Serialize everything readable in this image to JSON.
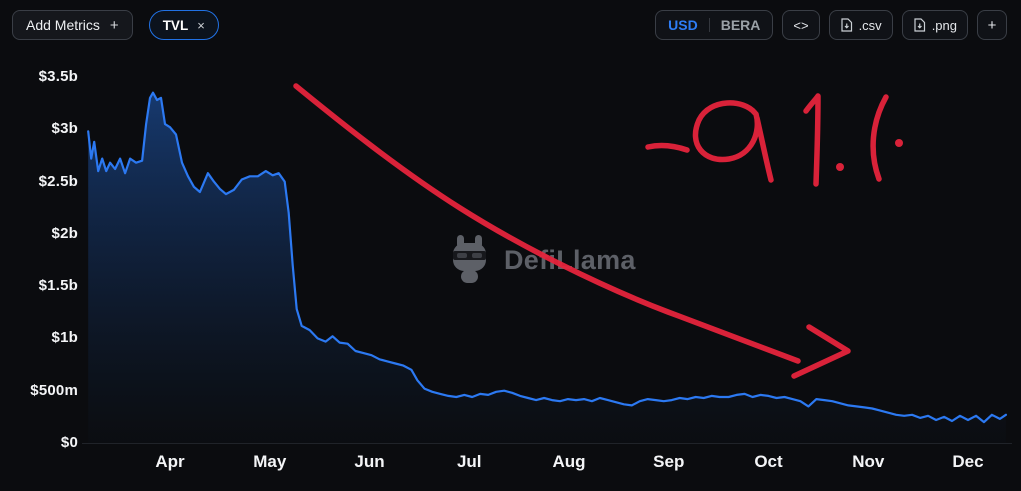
{
  "toolbar": {
    "add_metrics_label": "Add Metrics",
    "add_metrics_plus": "+",
    "metric_chip": {
      "label": "TVL",
      "close": "×"
    },
    "currency": {
      "usd": "USD",
      "bera": "BERA",
      "selected": "USD"
    },
    "embed_label": "<>",
    "csv_label": ".csv",
    "png_label": ".png",
    "add_label": "+"
  },
  "watermark": {
    "label": "DefiLlama"
  },
  "annotation": {
    "text": "-91%",
    "color": "#e5243c"
  },
  "colors": {
    "background": "#0b0c0f",
    "accent_blue": "#2172e5",
    "axis_text": "#f4f5f7",
    "muted_text": "#9aa0a6",
    "annotation_red": "#e5243c"
  },
  "chart_data": {
    "type": "area",
    "title": "TVL",
    "currency": "USD",
    "legend": false,
    "grid": false,
    "x_axis": {
      "ticks": [
        "Apr",
        "May",
        "Jun",
        "Jul",
        "Aug",
        "Sep",
        "Oct",
        "Nov",
        "Dec"
      ],
      "tick_values": [
        4,
        5,
        6,
        7,
        8,
        9,
        10,
        11,
        12
      ],
      "range_months": [
        3.18,
        12.4
      ]
    },
    "y_axis": {
      "ticks": [
        "$3.5b",
        "$3b",
        "$2.5b",
        "$2b",
        "$1.5b",
        "$1b",
        "$500m",
        "$0"
      ],
      "tick_values": [
        3.5,
        3.0,
        2.5,
        2.0,
        1.5,
        1.0,
        0.5,
        0
      ],
      "range": [
        0,
        3.5
      ],
      "unit": "USD billions"
    },
    "series": [
      {
        "name": "TVL",
        "color": "#2c79f2",
        "points": [
          [
            3.18,
            2.98
          ],
          [
            3.21,
            2.72
          ],
          [
            3.24,
            2.88
          ],
          [
            3.28,
            2.6
          ],
          [
            3.32,
            2.72
          ],
          [
            3.36,
            2.6
          ],
          [
            3.4,
            2.68
          ],
          [
            3.45,
            2.62
          ],
          [
            3.5,
            2.72
          ],
          [
            3.55,
            2.58
          ],
          [
            3.6,
            2.72
          ],
          [
            3.66,
            2.68
          ],
          [
            3.72,
            2.7
          ],
          [
            3.76,
            3.05
          ],
          [
            3.8,
            3.3
          ],
          [
            3.83,
            3.35
          ],
          [
            3.87,
            3.28
          ],
          [
            3.91,
            3.3
          ],
          [
            3.95,
            3.05
          ],
          [
            4.0,
            3.02
          ],
          [
            4.06,
            2.95
          ],
          [
            4.12,
            2.68
          ],
          [
            4.18,
            2.55
          ],
          [
            4.24,
            2.45
          ],
          [
            4.3,
            2.4
          ],
          [
            4.38,
            2.58
          ],
          [
            4.44,
            2.5
          ],
          [
            4.5,
            2.43
          ],
          [
            4.56,
            2.38
          ],
          [
            4.64,
            2.42
          ],
          [
            4.72,
            2.52
          ],
          [
            4.8,
            2.55
          ],
          [
            4.88,
            2.55
          ],
          [
            4.96,
            2.6
          ],
          [
            5.03,
            2.56
          ],
          [
            5.09,
            2.58
          ],
          [
            5.15,
            2.5
          ],
          [
            5.19,
            2.2
          ],
          [
            5.23,
            1.7
          ],
          [
            5.27,
            1.28
          ],
          [
            5.32,
            1.12
          ],
          [
            5.4,
            1.08
          ],
          [
            5.48,
            1.0
          ],
          [
            5.56,
            0.97
          ],
          [
            5.63,
            1.02
          ],
          [
            5.7,
            0.96
          ],
          [
            5.78,
            0.95
          ],
          [
            5.86,
            0.88
          ],
          [
            5.94,
            0.86
          ],
          [
            6.02,
            0.84
          ],
          [
            6.1,
            0.8
          ],
          [
            6.18,
            0.78
          ],
          [
            6.26,
            0.76
          ],
          [
            6.34,
            0.74
          ],
          [
            6.42,
            0.7
          ],
          [
            6.48,
            0.6
          ],
          [
            6.55,
            0.52
          ],
          [
            6.63,
            0.49
          ],
          [
            6.71,
            0.47
          ],
          [
            6.79,
            0.45
          ],
          [
            6.87,
            0.44
          ],
          [
            6.95,
            0.46
          ],
          [
            7.03,
            0.44
          ],
          [
            7.11,
            0.47
          ],
          [
            7.19,
            0.46
          ],
          [
            7.27,
            0.49
          ],
          [
            7.35,
            0.5
          ],
          [
            7.43,
            0.48
          ],
          [
            7.51,
            0.45
          ],
          [
            7.59,
            0.43
          ],
          [
            7.67,
            0.41
          ],
          [
            7.75,
            0.43
          ],
          [
            7.83,
            0.41
          ],
          [
            7.91,
            0.4
          ],
          [
            7.99,
            0.42
          ],
          [
            8.07,
            0.41
          ],
          [
            8.15,
            0.42
          ],
          [
            8.23,
            0.4
          ],
          [
            8.31,
            0.43
          ],
          [
            8.39,
            0.41
          ],
          [
            8.47,
            0.39
          ],
          [
            8.55,
            0.37
          ],
          [
            8.63,
            0.36
          ],
          [
            8.71,
            0.4
          ],
          [
            8.79,
            0.42
          ],
          [
            8.87,
            0.41
          ],
          [
            8.95,
            0.4
          ],
          [
            9.03,
            0.41
          ],
          [
            9.11,
            0.43
          ],
          [
            9.19,
            0.42
          ],
          [
            9.27,
            0.44
          ],
          [
            9.35,
            0.43
          ],
          [
            9.43,
            0.45
          ],
          [
            9.51,
            0.44
          ],
          [
            9.6,
            0.44
          ],
          [
            9.68,
            0.46
          ],
          [
            9.76,
            0.47
          ],
          [
            9.84,
            0.44
          ],
          [
            9.92,
            0.46
          ],
          [
            10.0,
            0.45
          ],
          [
            10.08,
            0.43
          ],
          [
            10.16,
            0.44
          ],
          [
            10.24,
            0.42
          ],
          [
            10.32,
            0.4
          ],
          [
            10.4,
            0.35
          ],
          [
            10.48,
            0.42
          ],
          [
            10.56,
            0.41
          ],
          [
            10.64,
            0.4
          ],
          [
            10.72,
            0.38
          ],
          [
            10.8,
            0.36
          ],
          [
            10.88,
            0.35
          ],
          [
            10.96,
            0.34
          ],
          [
            11.04,
            0.33
          ],
          [
            11.12,
            0.31
          ],
          [
            11.2,
            0.29
          ],
          [
            11.28,
            0.27
          ],
          [
            11.36,
            0.26
          ],
          [
            11.44,
            0.27
          ],
          [
            11.52,
            0.24
          ],
          [
            11.6,
            0.26
          ],
          [
            11.68,
            0.22
          ],
          [
            11.76,
            0.25
          ],
          [
            11.84,
            0.21
          ],
          [
            11.92,
            0.26
          ],
          [
            12.0,
            0.22
          ],
          [
            12.08,
            0.26
          ],
          [
            12.16,
            0.2
          ],
          [
            12.24,
            0.27
          ],
          [
            12.32,
            0.23
          ],
          [
            12.38,
            0.27
          ]
        ]
      }
    ]
  }
}
